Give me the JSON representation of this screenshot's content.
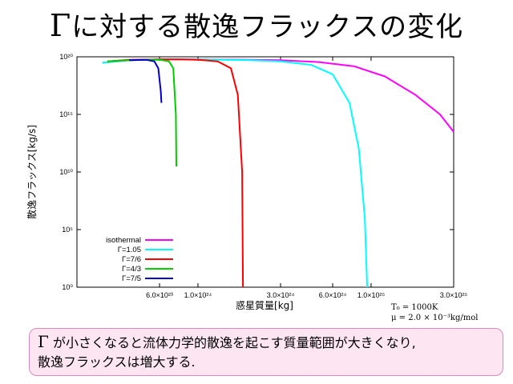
{
  "slide": {
    "title_symbol": "Γ",
    "title_rest": "に対する散逸フラックスの変化",
    "note_symbol": "Γ",
    "note_line1": "が小さくなると流体力学的散逸を起こす質量範囲が大きくなり,",
    "note_line2": "散逸フラックスは増大する."
  },
  "chart_data": {
    "type": "line",
    "title": "",
    "xlabel": "惑星質量[kg]",
    "ylabel": "散逸フラックス[kg/s]",
    "xscale": "log",
    "yscale": "log",
    "xlim": [
      2e+23,
      3e+25
    ],
    "ylim": [
      1,
      1e+20
    ],
    "x_ticks": [
      {
        "value": 6e+23,
        "label": "6.0×10²³"
      },
      {
        "value": 1e+24,
        "label": "1.0×10²⁴"
      },
      {
        "value": 3e+24,
        "label": "3.0×10²⁴"
      },
      {
        "value": 6e+24,
        "label": "6.0×10²⁴"
      },
      {
        "value": 1e+25,
        "label": "1.0×10²⁵"
      },
      {
        "value": 3e+25,
        "label": "3.0×10²⁵"
      }
    ],
    "y_ticks": [
      {
        "value": 1,
        "label": "10⁰"
      },
      {
        "value": 100000.0,
        "label": "10⁵"
      },
      {
        "value": 10000000000.0,
        "label": "10¹⁰"
      },
      {
        "value": 1000000000000000.0,
        "label": "10¹⁵"
      },
      {
        "value": 1e+20,
        "label": "10²⁰"
      }
    ],
    "legend_position": "bottom-left",
    "series": [
      {
        "name": "isothermal",
        "color": "#ff00ff",
        "x": [
          2.8e+23,
          4e+23,
          6e+23,
          1e+24,
          2e+24,
          3e+24,
          5e+24,
          8e+24,
          1.2e+25,
          1.8e+25,
          2.5e+25,
          3e+25
        ],
        "y": [
          3e+19,
          5e+19,
          6e+19,
          6e+19,
          5.5e+19,
          5e+19,
          3.5e+19,
          1.5e+19,
          2e+18,
          5e+16,
          1000000000000000.0,
          30000000000000.0
        ]
      },
      {
        "name": "Γ=1.05",
        "color": "#00ffff",
        "x": [
          2.8e+23,
          4e+23,
          6e+23,
          1e+24,
          2e+24,
          3e+24,
          4.5e+24,
          6e+24,
          7.5e+24,
          8.5e+24,
          9.2e+24,
          9.5e+24
        ],
        "y": [
          3e+19,
          5e+19,
          6e+19,
          6e+19,
          5e+19,
          4e+19,
          2e+19,
          3e+18,
          1e+16,
          1000000000000.0,
          1000000.0,
          1
        ]
      },
      {
        "name": "Γ=7/6",
        "color": "#ff0000",
        "x": [
          3e+23,
          4e+23,
          6e+23,
          8e+23,
          1e+24,
          1.3e+24,
          1.55e+24,
          1.7e+24,
          1.8e+24,
          1.82e+24
        ],
        "y": [
          4e+19,
          5.5e+19,
          6e+19,
          6e+19,
          5.5e+19,
          4e+19,
          1e+19,
          5e+16,
          10000000000.0,
          1
        ]
      },
      {
        "name": "Γ=4/3",
        "color": "#00cc00",
        "x": [
          3e+23,
          4e+23,
          5e+23,
          6e+23,
          6.8e+23,
          7.2e+23,
          7.45e+23,
          7.5e+23
        ],
        "y": [
          4e+19,
          5e+19,
          5.5e+19,
          5.5e+19,
          4e+19,
          1e+19,
          1000000000000000.0,
          30000000000.0
        ]
      },
      {
        "name": "Γ=7/5",
        "color": "#0000cc",
        "x": [
          4e+23,
          5e+23,
          5.6e+23,
          5.9e+23,
          6.1e+23,
          6.15e+23
        ],
        "y": [
          5e+19,
          5.5e+19,
          4e+19,
          1e+19,
          1e+17,
          1e+16
        ]
      }
    ],
    "parameters": [
      "T₀ = 1000K",
      "μ = 2.0 × 10⁻³kg/mol"
    ]
  }
}
